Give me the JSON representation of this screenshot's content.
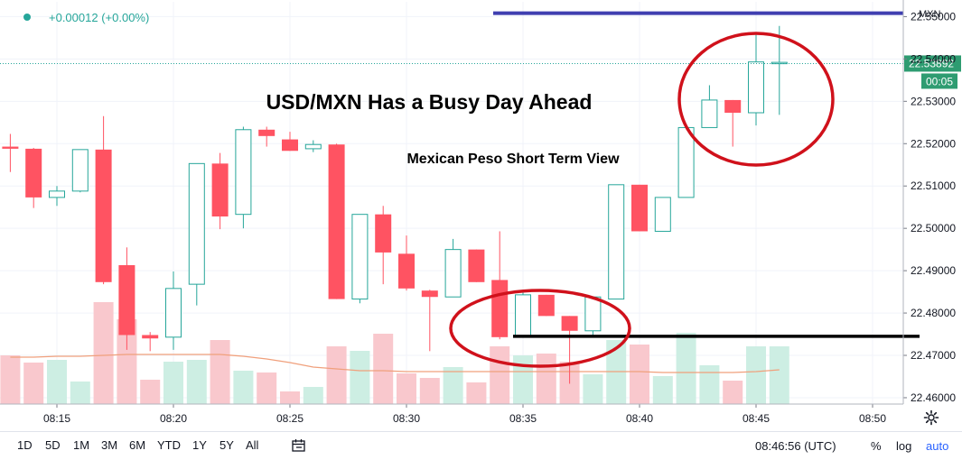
{
  "header": {
    "change_text": "+0.00012 (+0.00%)",
    "currency_label": "MXN"
  },
  "price_tag": {
    "value": "22.53892",
    "countdown": "00:05"
  },
  "annotations": {
    "main_title": "USD/MXN Has a Busy Day Ahead",
    "subtitle": "Mexican Peso Short Term View"
  },
  "colors": {
    "up": "#26a69a",
    "down": "#ff5362",
    "vol_up": "#cdeee3",
    "vol_down": "#f9c8cd",
    "ma": "#f0a07c",
    "resistance": "#3f3fb0",
    "support": "#000000",
    "circle": "#d0111b",
    "price_tag_bg": "#2e9c71"
  },
  "chart_data": {
    "type": "candlestick",
    "y_ticks": [
      "22.46000",
      "22.47000",
      "22.48000",
      "22.49000",
      "22.50000",
      "22.51000",
      "22.52000",
      "22.53000",
      "22.54000",
      "22.55000"
    ],
    "x_ticks": [
      "08:15",
      "08:20",
      "08:25",
      "08:30",
      "08:35",
      "08:40",
      "08:45",
      "08:50"
    ],
    "ylim": [
      22.4585,
      22.5535
    ],
    "grid": true,
    "candles": [
      {
        "t": "08:13",
        "o": 22.5193,
        "h": 22.5223,
        "l": 22.5133,
        "c": 22.5188
      },
      {
        "t": "08:14",
        "o": 22.5188,
        "h": 22.519,
        "l": 22.5048,
        "c": 22.5073
      },
      {
        "t": "08:15",
        "o": 22.5073,
        "h": 22.51,
        "l": 22.5053,
        "c": 22.5088
      },
      {
        "t": "08:16",
        "o": 22.5088,
        "h": 22.5186,
        "l": 22.5085,
        "c": 22.5186
      },
      {
        "t": "08:17",
        "o": 22.5186,
        "h": 22.5265,
        "l": 22.4868,
        "c": 22.4873
      },
      {
        "t": "08:18",
        "o": 22.4913,
        "h": 22.4955,
        "l": 22.4713,
        "c": 22.4748
      },
      {
        "t": "08:19",
        "o": 22.4748,
        "h": 22.4755,
        "l": 22.471,
        "c": 22.474
      },
      {
        "t": "08:20",
        "o": 22.4743,
        "h": 22.4898,
        "l": 22.4713,
        "c": 22.4858
      },
      {
        "t": "08:21",
        "o": 22.4868,
        "h": 22.5153,
        "l": 22.4818,
        "c": 22.5153
      },
      {
        "t": "08:22",
        "o": 22.5153,
        "h": 22.5178,
        "l": 22.4998,
        "c": 22.5028
      },
      {
        "t": "08:23",
        "o": 22.5033,
        "h": 22.524,
        "l": 22.5,
        "c": 22.5233
      },
      {
        "t": "08:24",
        "o": 22.5233,
        "h": 22.524,
        "l": 22.5193,
        "c": 22.5218
      },
      {
        "t": "08:25",
        "o": 22.521,
        "h": 22.5228,
        "l": 22.5183,
        "c": 22.5183
      },
      {
        "t": "08:26",
        "o": 22.5188,
        "h": 22.5208,
        "l": 22.518,
        "c": 22.5198
      },
      {
        "t": "08:27",
        "o": 22.5198,
        "h": 22.52,
        "l": 22.4833,
        "c": 22.4833
      },
      {
        "t": "08:28",
        "o": 22.4833,
        "h": 22.5033,
        "l": 22.4823,
        "c": 22.5033
      },
      {
        "t": "08:29",
        "o": 22.5033,
        "h": 22.5053,
        "l": 22.4868,
        "c": 22.4943
      },
      {
        "t": "08:30",
        "o": 22.494,
        "h": 22.4983,
        "l": 22.4853,
        "c": 22.4858
      },
      {
        "t": "08:31",
        "o": 22.4853,
        "h": 22.4855,
        "l": 22.471,
        "c": 22.4838
      },
      {
        "t": "08:32",
        "o": 22.4838,
        "h": 22.4975,
        "l": 22.4838,
        "c": 22.495
      },
      {
        "t": "08:33",
        "o": 22.495,
        "h": 22.495,
        "l": 22.4873,
        "c": 22.4873
      },
      {
        "t": "08:34",
        "o": 22.4878,
        "h": 22.4993,
        "l": 22.4738,
        "c": 22.4743
      },
      {
        "t": "08:35",
        "o": 22.4743,
        "h": 22.4853,
        "l": 22.4743,
        "c": 22.4843
      },
      {
        "t": "08:36",
        "o": 22.4843,
        "h": 22.4843,
        "l": 22.4793,
        "c": 22.4793
      },
      {
        "t": "08:37",
        "o": 22.4793,
        "h": 22.4793,
        "l": 22.4633,
        "c": 22.4758
      },
      {
        "t": "08:38",
        "o": 22.4758,
        "h": 22.4838,
        "l": 22.4745,
        "c": 22.4838
      },
      {
        "t": "08:39",
        "o": 22.4833,
        "h": 22.5103,
        "l": 22.4833,
        "c": 22.5103
      },
      {
        "t": "08:40",
        "o": 22.5103,
        "h": 22.5103,
        "l": 22.4993,
        "c": 22.4993
      },
      {
        "t": "08:41",
        "o": 22.4993,
        "h": 22.5073,
        "l": 22.4993,
        "c": 22.5073
      },
      {
        "t": "08:42",
        "o": 22.5073,
        "h": 22.5238,
        "l": 22.5073,
        "c": 22.5238
      },
      {
        "t": "08:43",
        "o": 22.5238,
        "h": 22.5338,
        "l": 22.5238,
        "c": 22.5303
      },
      {
        "t": "08:44",
        "o": 22.5303,
        "h": 22.5303,
        "l": 22.5193,
        "c": 22.5273
      },
      {
        "t": "08:45",
        "o": 22.5273,
        "h": 22.5458,
        "l": 22.5243,
        "c": 22.5393
      },
      {
        "t": "08:46",
        "o": 22.5389,
        "h": 22.5478,
        "l": 22.5268,
        "c": 22.5392
      }
    ],
    "volume": [
      {
        "v": 0.54,
        "dir": "down"
      },
      {
        "v": 0.46,
        "dir": "down"
      },
      {
        "v": 0.49,
        "dir": "up"
      },
      {
        "v": 0.25,
        "dir": "up"
      },
      {
        "v": 1.13,
        "dir": "down"
      },
      {
        "v": 0.94,
        "dir": "down"
      },
      {
        "v": 0.27,
        "dir": "down"
      },
      {
        "v": 0.47,
        "dir": "up"
      },
      {
        "v": 0.49,
        "dir": "up"
      },
      {
        "v": 0.71,
        "dir": "down"
      },
      {
        "v": 0.37,
        "dir": "up"
      },
      {
        "v": 0.35,
        "dir": "down"
      },
      {
        "v": 0.14,
        "dir": "down"
      },
      {
        "v": 0.19,
        "dir": "up"
      },
      {
        "v": 0.64,
        "dir": "down"
      },
      {
        "v": 0.59,
        "dir": "up"
      },
      {
        "v": 0.78,
        "dir": "down"
      },
      {
        "v": 0.34,
        "dir": "down"
      },
      {
        "v": 0.29,
        "dir": "down"
      },
      {
        "v": 0.41,
        "dir": "up"
      },
      {
        "v": 0.24,
        "dir": "down"
      },
      {
        "v": 0.64,
        "dir": "down"
      },
      {
        "v": 0.54,
        "dir": "up"
      },
      {
        "v": 0.56,
        "dir": "down"
      },
      {
        "v": 0.47,
        "dir": "down"
      },
      {
        "v": 0.33,
        "dir": "up"
      },
      {
        "v": 0.71,
        "dir": "up"
      },
      {
        "v": 0.66,
        "dir": "down"
      },
      {
        "v": 0.31,
        "dir": "up"
      },
      {
        "v": 0.79,
        "dir": "up"
      },
      {
        "v": 0.43,
        "dir": "up"
      },
      {
        "v": 0.26,
        "dir": "down"
      },
      {
        "v": 0.64,
        "dir": "up"
      },
      {
        "v": 0.64,
        "dir": "up"
      }
    ],
    "volume_ma": [
      0.52,
      0.52,
      0.53,
      0.53,
      0.54,
      0.55,
      0.55,
      0.55,
      0.55,
      0.55,
      0.53,
      0.5,
      0.46,
      0.41,
      0.39,
      0.37,
      0.37,
      0.36,
      0.36,
      0.36,
      0.36,
      0.36,
      0.36,
      0.36,
      0.36,
      0.36,
      0.36,
      0.36,
      0.35,
      0.35,
      0.35,
      0.35,
      0.36,
      0.38
    ],
    "resistance_level": 22.5508,
    "current_price": 22.53892,
    "support_level": 22.4745
  },
  "toolbar": {
    "timeframes": [
      "1D",
      "5D",
      "1M",
      "3M",
      "6M",
      "YTD",
      "1Y",
      "5Y",
      "All"
    ],
    "time_status": "08:46:56 (UTC)",
    "right_buttons": [
      "%",
      "log",
      "auto"
    ]
  }
}
